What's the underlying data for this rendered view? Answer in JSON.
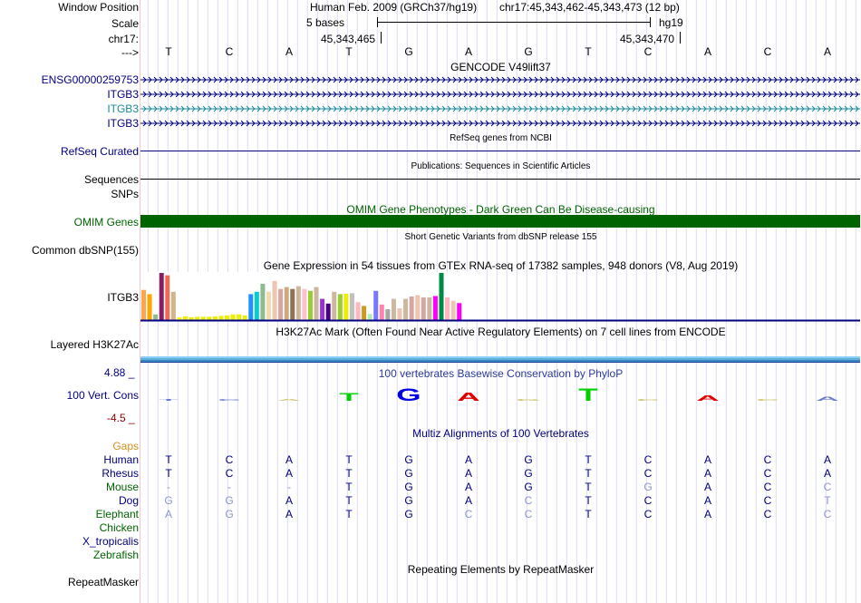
{
  "header": {
    "window_position_label": "Window Position",
    "scale_label": "Scale",
    "chr_label": "chr17:",
    "arrow_label": "--->",
    "assembly_title": "Human Feb. 2009 (GRCh37/hg19)",
    "position": "chr17:45,343,462-45,343,473 (12 bp)",
    "scale_text": "5 bases",
    "scale_db": "hg19",
    "coord_left": "45,343,465",
    "coord_right": "45,343,470",
    "bases": [
      "T",
      "C",
      "A",
      "T",
      "G",
      "A",
      "G",
      "T",
      "C",
      "A",
      "C",
      "A"
    ]
  },
  "gencode": {
    "title": "GENCODE V49lift37",
    "tracks": [
      {
        "label": "ENSG00000259753",
        "color": "#000080"
      },
      {
        "label": "ITGB3",
        "color": "#000080"
      },
      {
        "label": "ITGB3",
        "color": "#1a8a9a"
      },
      {
        "label": "ITGB3",
        "color": "#000080"
      }
    ]
  },
  "refseq": {
    "label": "RefSeq Curated",
    "title": "RefSeq genes from NCBI"
  },
  "publications": {
    "label": "Sequences",
    "title": "Publications: Sequences in Scientific Articles"
  },
  "snps": {
    "label": "SNPs"
  },
  "omim": {
    "label": "OMIM Genes",
    "title": "OMIM Gene Phenotypes - Dark Green Can Be Disease-causing",
    "color": "#006400"
  },
  "dbsnp": {
    "label": "Common dbSNP(155)",
    "title": "Short Genetic Variants from dbSNP release 155"
  },
  "gtex": {
    "label": "ITGB3",
    "title": "Gene Expression in 54 tissues from GTEx RNA-seq of 17382 samples, 948 donors (V8, Aug 2019)",
    "values": [
      0.64,
      0.55,
      0.12,
      1.0,
      0.95,
      0.6,
      0.06,
      0.08,
      0.06,
      0.07,
      0.07,
      0.07,
      0.08,
      0.09,
      0.1,
      0.12,
      0.12,
      0.1,
      0.55,
      0.6,
      0.77,
      0.6,
      0.83,
      0.66,
      0.7,
      0.66,
      0.72,
      0.66,
      0.62,
      0.7,
      0.45,
      0.35,
      0.6,
      0.55,
      0.56,
      0.57,
      0.38,
      0.3,
      0.13,
      0.62,
      0.33,
      0.23,
      0.45,
      0.25,
      0.45,
      0.5,
      0.53,
      0.48,
      0.48,
      0.51,
      1.0,
      0.48,
      0.41,
      0.36
    ],
    "colors": [
      "#ffa54f",
      "#ffa500",
      "#8fbc8f",
      "#8b1c62",
      "#ee6a50",
      "#d2b48c",
      "#ffff00",
      "#eeee00",
      "#eeee00",
      "#eeee00",
      "#eeee00",
      "#eeee00",
      "#eeee00",
      "#eeee00",
      "#eeee00",
      "#eeee00",
      "#eeee00",
      "#eeee00",
      "#1e90ff",
      "#00ced1",
      "#8fbc8f",
      "#eedcb3",
      "#eec5b0",
      "#d8a6a0",
      "#cdaa7d",
      "#8b7355",
      "#cdb79e",
      "#ffc0cb",
      "#9acd32",
      "#cdb79e",
      "#9a32cd",
      "#4b0082",
      "#cdb79e",
      "#9acd32",
      "#eeee00",
      "#c0c0c0",
      "#ffb6c1",
      "#cd9b1d",
      "#b4eeb4",
      "#7777ff",
      "#ff82ab",
      "#a6a6a6",
      "#cdb79e",
      "#eec5b0",
      "#cdb79e",
      "#d8a6a0",
      "#eec5b0",
      "#d8a6a0",
      "#cdb79e",
      "#ff00ff",
      "#008b45",
      "#ffb6c1",
      "#eec5b0",
      "#ff00ff"
    ]
  },
  "h3k27ac": {
    "label": "Layered H3K27Ac",
    "title": "H3K27Ac Mark (Often Found Near Active Regulatory Elements) on 7 cell lines from ENCODE"
  },
  "phylop": {
    "label": "100 Vert. Cons",
    "max": "4.88 _",
    "min": "-4.5 _",
    "title": "100 vertebrates Basewise Conservation by PhyloP",
    "scores": [
      -0.2,
      -0.2,
      0.05,
      0.6,
      1.0,
      0.65,
      0.05,
      1.0,
      0.15,
      0.4,
      0.1,
      -0.3
    ]
  },
  "multiz": {
    "title": "Multiz Alignments of 100 Vertebrates",
    "gaps_label": "Gaps",
    "species": [
      {
        "name": "Human",
        "color": "#000080",
        "bases": [
          "T",
          "C",
          "A",
          "T",
          "G",
          "A",
          "G",
          "T",
          "C",
          "A",
          "C",
          "A"
        ],
        "match": [
          1,
          1,
          1,
          1,
          1,
          1,
          1,
          1,
          1,
          1,
          1,
          1
        ]
      },
      {
        "name": "Rhesus",
        "color": "#000080",
        "bases": [
          "T",
          "C",
          "A",
          "T",
          "G",
          "A",
          "G",
          "T",
          "C",
          "A",
          "C",
          "A"
        ],
        "match": [
          1,
          1,
          1,
          1,
          1,
          1,
          1,
          1,
          1,
          1,
          1,
          1
        ]
      },
      {
        "name": "Mouse",
        "color": "#006400",
        "bases": [
          "-",
          "-",
          "-",
          "T",
          "G",
          "A",
          "G",
          "T",
          "G",
          "A",
          "C",
          "C"
        ],
        "match": [
          0,
          0,
          0,
          1,
          1,
          1,
          1,
          1,
          0,
          1,
          1,
          0
        ]
      },
      {
        "name": "Dog",
        "color": "#000080",
        "bases": [
          "G",
          "G",
          "A",
          "T",
          "G",
          "A",
          "C",
          "T",
          "C",
          "A",
          "C",
          "T"
        ],
        "match": [
          0,
          0,
          1,
          1,
          1,
          1,
          0,
          1,
          1,
          1,
          1,
          0
        ]
      },
      {
        "name": "Elephant",
        "color": "#006400",
        "bases": [
          "A",
          "G",
          "A",
          "T",
          "G",
          "C",
          "C",
          "T",
          "C",
          "A",
          "C",
          "C"
        ],
        "match": [
          0,
          0,
          1,
          1,
          1,
          0,
          0,
          1,
          1,
          1,
          1,
          0
        ]
      },
      {
        "name": "Chicken",
        "color": "#006400",
        "bases": [],
        "match": []
      },
      {
        "name": "X_tropicalis",
        "color": "#000080",
        "bases": [],
        "match": []
      },
      {
        "name": "Zebrafish",
        "color": "#006400",
        "bases": [],
        "match": []
      }
    ]
  },
  "repeatmasker": {
    "label": "RepeatMasker",
    "title": "Repeating Elements by RepeatMasker"
  }
}
